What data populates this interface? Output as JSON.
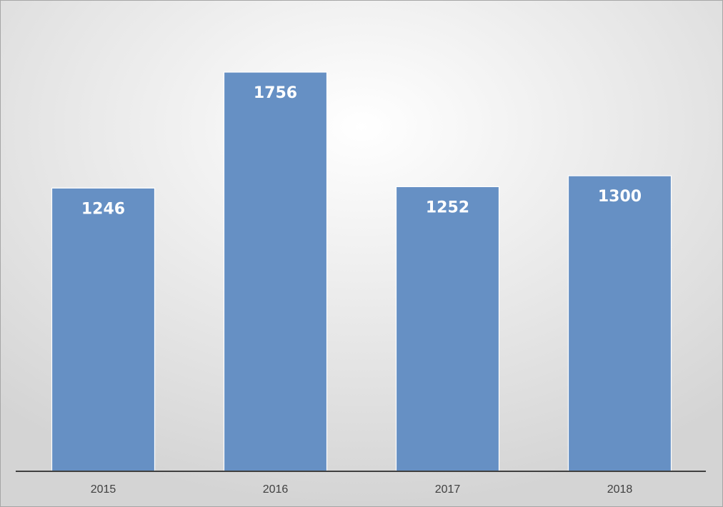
{
  "chart_data": {
    "type": "bar",
    "categories": [
      "2015",
      "2016",
      "2017",
      "2018"
    ],
    "values": [
      1246,
      1756,
      1252,
      1300
    ],
    "color": "#6690c4"
  }
}
